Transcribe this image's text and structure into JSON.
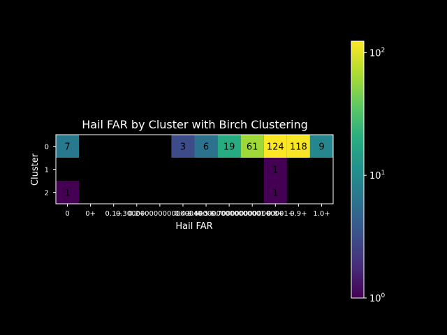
{
  "chart_data": {
    "type": "heatmap",
    "title": "Hail FAR by Cluster with Birch Clustering",
    "xlabel": "Hail FAR",
    "ylabel": "Cluster",
    "x_categories": [
      "0",
      "0+",
      "0.1+",
      "0.2+",
      "0.30000000000000004+",
      "0.4+",
      "0.5+",
      "0.6000000000000001+",
      "0.7000000000000001+",
      "0.8+",
      "0.9+",
      "1.0+"
    ],
    "x_tick_labels": [
      "0",
      "0+",
      "0.1+",
      "0.2+",
      "0.30000000000000004+",
      "0.4+",
      "0.5+",
      "0.6000000000000001+",
      "0.7000000000000001+",
      "0.8+",
      "0.9+",
      "1.0+"
    ],
    "y_categories": [
      "0",
      "1",
      "2"
    ],
    "values": [
      [
        7,
        null,
        null,
        null,
        null,
        3,
        6,
        19,
        61,
        124,
        118,
        9
      ],
      [
        null,
        null,
        null,
        null,
        null,
        null,
        null,
        null,
        null,
        1,
        null,
        null
      ],
      [
        1,
        null,
        null,
        null,
        null,
        null,
        null,
        null,
        null,
        1,
        null,
        null
      ]
    ],
    "colorscale": "viridis",
    "color_scale_type": "log",
    "colorbar_range": [
      1,
      124
    ],
    "colorbar_ticks": [
      "10",
      "10",
      "10"
    ],
    "colorbar_tick_exponents": [
      "0",
      "1",
      "2"
    ],
    "background": "#000000",
    "text_color": "#ffffff"
  }
}
